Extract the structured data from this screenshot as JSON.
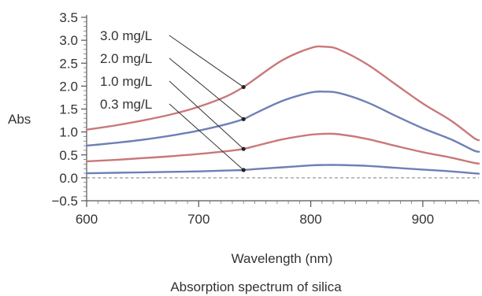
{
  "chart_data": {
    "type": "line",
    "title": "",
    "caption": "Absorption spectrum of silica",
    "xlabel": "Wavelength (nm)",
    "ylabel": "Abs",
    "xlim": [
      600,
      950
    ],
    "ylim": [
      -0.5,
      3.5
    ],
    "x_ticks": [
      600,
      700,
      800,
      900
    ],
    "x_tick_labels": [
      "600",
      "700",
      "800",
      "900"
    ],
    "y_ticks": [
      -0.5,
      0.0,
      0.5,
      1.0,
      1.5,
      2.0,
      2.5,
      3.0,
      3.5
    ],
    "y_tick_labels": [
      "−0.5",
      "0.0",
      "0.5",
      "1.0",
      "1.5",
      "2.0",
      "2.5",
      "3.0",
      "3.5"
    ],
    "baseline": 0.0,
    "grid": false,
    "legend": "none",
    "series": [
      {
        "name": "3.0 mg/L",
        "color": "#c9787a",
        "marker_x": 740,
        "x": [
          600,
          625,
          650,
          675,
          700,
          725,
          740,
          750,
          775,
          800,
          812,
          825,
          850,
          875,
          900,
          925,
          945,
          950
        ],
        "y": [
          1.05,
          1.14,
          1.25,
          1.38,
          1.55,
          1.78,
          1.98,
          2.15,
          2.57,
          2.83,
          2.86,
          2.8,
          2.48,
          2.05,
          1.62,
          1.25,
          0.88,
          0.82
        ]
      },
      {
        "name": "2.0 mg/L",
        "color": "#6f7fb5",
        "marker_x": 740,
        "x": [
          600,
          625,
          650,
          675,
          700,
          725,
          740,
          750,
          775,
          800,
          812,
          825,
          850,
          875,
          900,
          925,
          945,
          950
        ],
        "y": [
          0.7,
          0.76,
          0.83,
          0.92,
          1.03,
          1.17,
          1.28,
          1.4,
          1.68,
          1.86,
          1.88,
          1.85,
          1.65,
          1.36,
          1.08,
          0.84,
          0.6,
          0.57
        ]
      },
      {
        "name": "1.0 mg/L",
        "color": "#c9787a",
        "marker_x": 740,
        "x": [
          600,
          625,
          650,
          675,
          700,
          725,
          740,
          750,
          775,
          800,
          812,
          825,
          850,
          875,
          900,
          925,
          945,
          950
        ],
        "y": [
          0.36,
          0.39,
          0.43,
          0.47,
          0.52,
          0.58,
          0.63,
          0.69,
          0.84,
          0.94,
          0.96,
          0.95,
          0.85,
          0.7,
          0.56,
          0.44,
          0.33,
          0.31
        ]
      },
      {
        "name": "0.3 mg/L",
        "color": "#6f7fb5",
        "marker_x": 740,
        "x": [
          600,
          625,
          650,
          675,
          700,
          725,
          740,
          750,
          775,
          800,
          812,
          825,
          850,
          875,
          900,
          925,
          945,
          950
        ],
        "y": [
          0.1,
          0.11,
          0.12,
          0.13,
          0.14,
          0.16,
          0.17,
          0.19,
          0.23,
          0.27,
          0.28,
          0.28,
          0.26,
          0.22,
          0.18,
          0.14,
          0.1,
          0.09
        ]
      }
    ]
  }
}
